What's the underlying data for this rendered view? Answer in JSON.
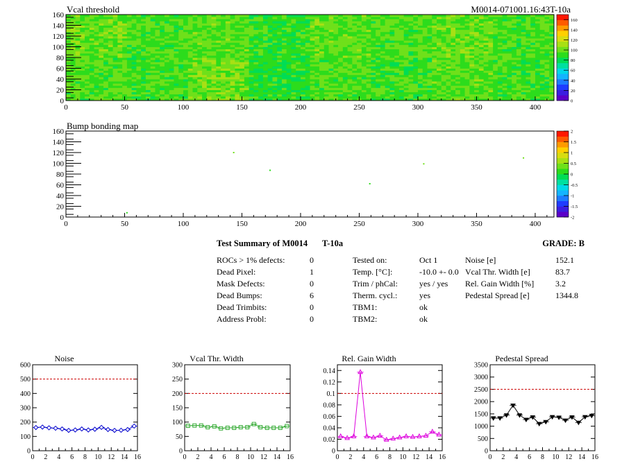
{
  "header": {
    "plot1_title": "Vcal threshold",
    "plot1_id": "M0014-071001.16:43T-10a",
    "plot2_title": "Bump bonding map"
  },
  "colors": {
    "palette": [
      "#5b00c8",
      "#3a1ee0",
      "#1f3cff",
      "#1d7cff",
      "#14b4ff",
      "#00d9e8",
      "#00e0a0",
      "#00dd55",
      "#2cdc1c",
      "#6fe01a",
      "#a8e014",
      "#d8dc10",
      "#ffd000",
      "#ff9a00",
      "#ff5a00",
      "#ff1800"
    ],
    "threshold_line": "#cc0000",
    "noise": "#0000cc",
    "vcal": "#33aa33",
    "gain": "#dd00dd",
    "pedestal": "#000000"
  },
  "chart_data": [
    {
      "type": "heatmap",
      "title": "Vcal threshold",
      "xlim": [
        0,
        416
      ],
      "ylim": [
        0,
        160
      ],
      "x_ticks": [
        "0",
        "50",
        "100",
        "150",
        "200",
        "250",
        "300",
        "350",
        "400"
      ],
      "y_ticks": [
        "0",
        "20",
        "40",
        "60",
        "80",
        "100",
        "120",
        "140",
        "160"
      ],
      "colorbar_ticks": [
        "0",
        "20",
        "40",
        "60",
        "80",
        "100",
        "120",
        "140",
        "160"
      ],
      "zlim": [
        0,
        170
      ],
      "roc_mean_values_bottom": [
        95,
        93,
        100,
        88,
        95,
        92,
        96,
        93
      ],
      "roc_mean_values_top": [
        98,
        94,
        96,
        90,
        97,
        95,
        99,
        94
      ]
    },
    {
      "type": "heatmap",
      "title": "Bump bonding map",
      "xlim": [
        0,
        416
      ],
      "ylim": [
        0,
        160
      ],
      "x_ticks": [
        "0",
        "50",
        "100",
        "150",
        "200",
        "250",
        "300",
        "350",
        "400"
      ],
      "y_ticks": [
        "0",
        "20",
        "40",
        "60",
        "80",
        "100",
        "120",
        "140",
        "160"
      ],
      "colorbar_ticks": [
        "-2",
        "-1.5",
        "-1",
        "-0.5",
        "0",
        "0.5",
        "1",
        "1.5",
        "2"
      ],
      "zlim": [
        -2,
        2
      ],
      "points": [
        {
          "x": 52,
          "y": 8,
          "v": 0.2
        },
        {
          "x": 143,
          "y": 120,
          "v": 0.3
        },
        {
          "x": 174,
          "y": 87,
          "v": 0.2
        },
        {
          "x": 259,
          "y": 62,
          "v": 0.2
        },
        {
          "x": 305,
          "y": 99,
          "v": 0.4
        },
        {
          "x": 390,
          "y": 110,
          "v": 0.3
        }
      ]
    },
    {
      "type": "line",
      "title": "Noise",
      "ylim": [
        0,
        600
      ],
      "xlim": [
        0,
        16
      ],
      "threshold": 500,
      "y_ticks": [
        "0",
        "100",
        "200",
        "300",
        "400",
        "500",
        "600"
      ],
      "x_ticks": [
        "0",
        "2",
        "4",
        "6",
        "8",
        "10",
        "12",
        "14",
        "16"
      ],
      "marker": "diamond",
      "x": [
        0.5,
        1.5,
        2.5,
        3.5,
        4.5,
        5.5,
        6.5,
        7.5,
        8.5,
        9.5,
        10.5,
        11.5,
        12.5,
        13.5,
        14.5,
        15.5
      ],
      "values": [
        162,
        165,
        160,
        157,
        152,
        142,
        145,
        152,
        145,
        150,
        163,
        148,
        142,
        143,
        148,
        172
      ]
    },
    {
      "type": "line",
      "title": "Vcal Thr. Width",
      "ylim": [
        0,
        300
      ],
      "xlim": [
        0,
        16
      ],
      "threshold": 200,
      "y_ticks": [
        "0",
        "50",
        "100",
        "150",
        "200",
        "250",
        "300"
      ],
      "x_ticks": [
        "0",
        "2",
        "4",
        "6",
        "8",
        "10",
        "12",
        "14",
        "16"
      ],
      "marker": "square",
      "x": [
        0.5,
        1.5,
        2.5,
        3.5,
        4.5,
        5.5,
        6.5,
        7.5,
        8.5,
        9.5,
        10.5,
        11.5,
        12.5,
        13.5,
        14.5,
        15.5
      ],
      "values": [
        87,
        88,
        88,
        82,
        85,
        78,
        80,
        80,
        82,
        82,
        93,
        82,
        80,
        80,
        80,
        86
      ]
    },
    {
      "type": "line",
      "title": "Rel. Gain Width",
      "ylim": [
        0,
        0.15
      ],
      "xlim": [
        0,
        16
      ],
      "threshold": 0.1,
      "y_ticks": [
        "0",
        "0.02",
        "0.04",
        "0.06",
        "0.08",
        "0.1",
        "0.12",
        "0.14"
      ],
      "x_ticks": [
        "0",
        "2",
        "4",
        "6",
        "8",
        "10",
        "12",
        "14",
        "16"
      ],
      "marker": "triangle-up",
      "x": [
        0.5,
        1.5,
        2.5,
        3.5,
        4.5,
        5.5,
        6.5,
        7.5,
        8.5,
        9.5,
        10.5,
        11.5,
        12.5,
        13.5,
        14.5,
        15.5
      ],
      "values": [
        0.025,
        0.022,
        0.025,
        0.137,
        0.025,
        0.023,
        0.026,
        0.019,
        0.021,
        0.023,
        0.025,
        0.024,
        0.025,
        0.026,
        0.033,
        0.028
      ]
    },
    {
      "type": "line",
      "title": "Pedestal Spread",
      "ylim": [
        0,
        3500
      ],
      "xlim": [
        0,
        16
      ],
      "threshold": 2500,
      "y_ticks": [
        "0",
        "500",
        "1000",
        "1500",
        "2000",
        "2500",
        "3000",
        "3500"
      ],
      "x_ticks": [
        "0",
        "2",
        "4",
        "6",
        "8",
        "10",
        "12",
        "14",
        "16"
      ],
      "marker": "triangle-down",
      "x": [
        0.5,
        1.5,
        2.5,
        3.5,
        4.5,
        5.5,
        6.5,
        7.5,
        8.5,
        9.5,
        10.5,
        11.5,
        12.5,
        13.5,
        14.5,
        15.5
      ],
      "values": [
        1330,
        1330,
        1450,
        1850,
        1450,
        1270,
        1370,
        1100,
        1180,
        1380,
        1360,
        1240,
        1370,
        1150,
        1380,
        1430
      ]
    }
  ],
  "summary": {
    "title": "Test Summary of M0014",
    "temp_label": "T-10a",
    "grade": "GRADE:  B",
    "left": [
      {
        "label": "ROCs > 1% defects:",
        "value": "0"
      },
      {
        "label": "Dead Pixel:",
        "value": "1"
      },
      {
        "label": "Mask Defects:",
        "value": "0"
      },
      {
        "label": "Dead Bumps:",
        "value": "6"
      },
      {
        "label": "Dead Trimbits:",
        "value": "0"
      },
      {
        "label": "Address Probl:",
        "value": "0"
      }
    ],
    "middle": [
      {
        "label": "Tested on:",
        "value": "Oct 1"
      },
      {
        "label": "Temp. [°C]:",
        "value": "-10.0 +- 0.0"
      },
      {
        "label": "Trim / phCal:",
        "value": "yes / yes"
      },
      {
        "label": "Therm. cycl.:",
        "value": "yes"
      },
      {
        "label": "TBM1:",
        "value": "ok"
      },
      {
        "label": "TBM2:",
        "value": "ok"
      }
    ],
    "right": [
      {
        "label": "Noise [e]",
        "value": "152.1"
      },
      {
        "label": "Vcal Thr. Width [e]",
        "value": "83.7"
      },
      {
        "label": "Rel. Gain Width [%]",
        "value": "3.2"
      },
      {
        "label": "Pedestal Spread [e]",
        "value": "1344.8"
      }
    ]
  }
}
